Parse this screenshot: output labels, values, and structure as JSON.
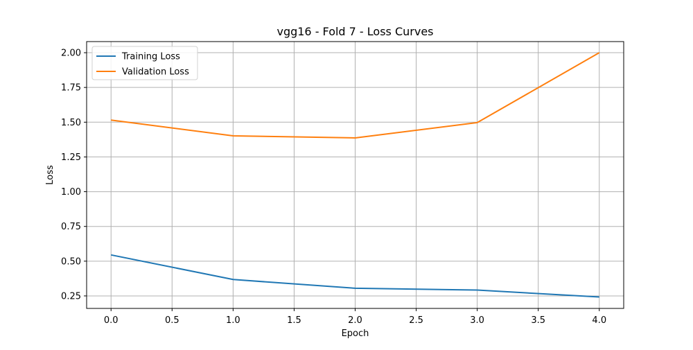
{
  "chart_data": {
    "type": "line",
    "title": "vgg16 - Fold 7 - Loss Curves",
    "xlabel": "Epoch",
    "ylabel": "Loss",
    "x": [
      0,
      1,
      2,
      3,
      4
    ],
    "series": [
      {
        "name": "Training Loss",
        "color": "#1f77b4",
        "values": [
          0.545,
          0.368,
          0.305,
          0.292,
          0.242
        ]
      },
      {
        "name": "Validation Loss",
        "color": "#ff7f0e",
        "values": [
          1.515,
          1.402,
          1.387,
          1.497,
          2.0
        ]
      }
    ],
    "xlim": [
      -0.2,
      4.2
    ],
    "ylim": [
      0.16,
      2.08
    ],
    "xticks": [
      "0.0",
      "0.5",
      "1.0",
      "1.5",
      "2.0",
      "2.5",
      "3.0",
      "3.5",
      "4.0"
    ],
    "yticks": [
      "0.25",
      "0.50",
      "0.75",
      "1.00",
      "1.25",
      "1.50",
      "1.75",
      "2.00"
    ],
    "grid": true,
    "legend": "top-left"
  }
}
